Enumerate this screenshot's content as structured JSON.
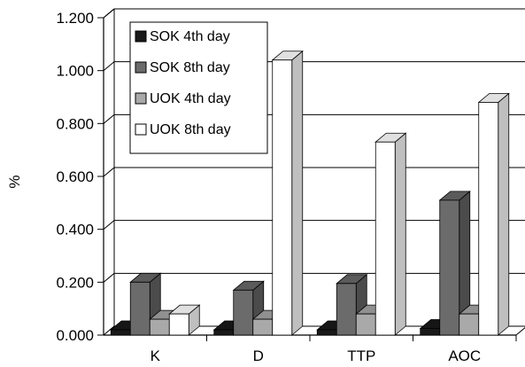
{
  "chart_data": {
    "type": "bar",
    "title": "",
    "xlabel": "",
    "ylabel": "%",
    "categories": [
      "K",
      "D",
      "TTP",
      "AOC"
    ],
    "ylim": [
      0,
      1.2
    ],
    "yticks": [
      "0.000",
      "0.200",
      "0.400",
      "0.600",
      "0.800",
      "1.000",
      "1.200"
    ],
    "grid": true,
    "legend_position": "top-left",
    "series": [
      {
        "name": "SOK 4th day",
        "color": "#1a1a1a",
        "values": [
          0.02,
          0.02,
          0.02,
          0.025
        ]
      },
      {
        "name": "SOK 8th day",
        "color": "#6b6b6b",
        "values": [
          0.2,
          0.17,
          0.195,
          0.51
        ]
      },
      {
        "name": "UOK 4th day",
        "color": "#a9a9a9",
        "values": [
          0.06,
          0.06,
          0.08,
          0.08
        ]
      },
      {
        "name": "UOK 8th day",
        "color": "#ffffff",
        "values": [
          0.08,
          1.04,
          0.73,
          0.88
        ]
      }
    ]
  }
}
